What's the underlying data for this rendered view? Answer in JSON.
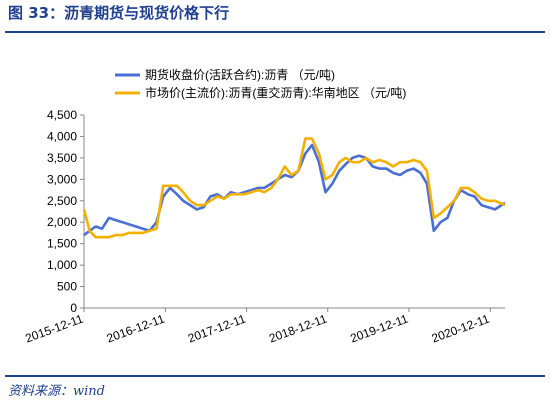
{
  "figure": {
    "title": "图 33：沥青期货与现货价格下行",
    "source": "资料来源：wind"
  },
  "chart_data": {
    "type": "line",
    "title": "",
    "xlabel": "",
    "ylabel": "",
    "ylim": [
      0,
      4500
    ],
    "yticks": [
      "0",
      "500",
      "1,000",
      "1,500",
      "2,000",
      "2,500",
      "3,000",
      "3,500",
      "4,000",
      "4,500"
    ],
    "ytick_values": [
      0,
      500,
      1000,
      1500,
      2000,
      2500,
      3000,
      3500,
      4000,
      4500
    ],
    "xlim": [
      "2015-12-11",
      "2021-02-15"
    ],
    "xticks": [
      "2015-12-11",
      "2016-12-11",
      "2017-12-11",
      "2018-12-11",
      "2019-12-11",
      "2020-12-11"
    ],
    "grid": false,
    "legend_position": "top",
    "series": [
      {
        "name": "期货收盘价(活跃合约):沥青 （元/吨)",
        "color": "#4a6fd3",
        "x": [
          "2015-12-11",
          "2016-01-05",
          "2016-02-01",
          "2016-03-01",
          "2016-04-01",
          "2016-05-01",
          "2016-06-01",
          "2016-07-01",
          "2016-08-01",
          "2016-09-01",
          "2016-10-01",
          "2016-11-01",
          "2016-12-01",
          "2017-01-01",
          "2017-02-01",
          "2017-03-01",
          "2017-04-01",
          "2017-05-01",
          "2017-06-01",
          "2017-07-01",
          "2017-08-01",
          "2017-09-01",
          "2017-10-01",
          "2017-11-01",
          "2017-12-01",
          "2018-01-01",
          "2018-02-01",
          "2018-03-01",
          "2018-04-01",
          "2018-05-01",
          "2018-06-01",
          "2018-07-01",
          "2018-08-01",
          "2018-09-01",
          "2018-10-01",
          "2018-11-01",
          "2018-12-01",
          "2019-01-01",
          "2019-02-01",
          "2019-03-01",
          "2019-04-01",
          "2019-05-01",
          "2019-06-01",
          "2019-07-01",
          "2019-08-01",
          "2019-09-01",
          "2019-10-01",
          "2019-11-01",
          "2019-12-01",
          "2020-01-01",
          "2020-02-01",
          "2020-03-01",
          "2020-04-01",
          "2020-05-01",
          "2020-06-01",
          "2020-07-01",
          "2020-08-01",
          "2020-09-01",
          "2020-10-01",
          "2020-11-01",
          "2020-12-01",
          "2021-01-01",
          "2021-02-15"
        ],
        "y": [
          1700,
          1800,
          1900,
          1850,
          2100,
          2050,
          2000,
          1950,
          1900,
          1850,
          1800,
          2000,
          2600,
          2800,
          2650,
          2500,
          2400,
          2300,
          2350,
          2600,
          2650,
          2550,
          2700,
          2650,
          2700,
          2750,
          2800,
          2800,
          2900,
          3000,
          3100,
          3050,
          3200,
          3600,
          3800,
          3400,
          2700,
          2900,
          3200,
          3350,
          3500,
          3550,
          3500,
          3300,
          3250,
          3250,
          3150,
          3100,
          3200,
          3250,
          3150,
          2900,
          1800,
          2000,
          2100,
          2500,
          2750,
          2650,
          2600,
          2400,
          2350,
          2300,
          2450
        ]
      },
      {
        "name": "市场价(主流价):沥青(重交沥青):华南地区 （元/吨)",
        "color": "#f2b000",
        "x": [
          "2015-12-11",
          "2016-01-05",
          "2016-02-01",
          "2016-03-01",
          "2016-04-01",
          "2016-05-01",
          "2016-06-01",
          "2016-07-01",
          "2016-08-01",
          "2016-09-01",
          "2016-10-01",
          "2016-11-01",
          "2016-12-01",
          "2017-01-01",
          "2017-02-01",
          "2017-03-01",
          "2017-04-01",
          "2017-05-01",
          "2017-06-01",
          "2017-07-01",
          "2017-08-01",
          "2017-09-01",
          "2017-10-01",
          "2017-11-01",
          "2017-12-01",
          "2018-01-01",
          "2018-02-01",
          "2018-03-01",
          "2018-04-01",
          "2018-05-01",
          "2018-06-01",
          "2018-07-01",
          "2018-08-01",
          "2018-09-01",
          "2018-10-01",
          "2018-11-01",
          "2018-12-01",
          "2019-01-01",
          "2019-02-01",
          "2019-03-01",
          "2019-04-01",
          "2019-05-01",
          "2019-06-01",
          "2019-07-01",
          "2019-08-01",
          "2019-09-01",
          "2019-10-01",
          "2019-11-01",
          "2019-12-01",
          "2020-01-01",
          "2020-02-01",
          "2020-03-01",
          "2020-04-01",
          "2020-05-01",
          "2020-06-01",
          "2020-07-01",
          "2020-08-01",
          "2020-09-01",
          "2020-10-01",
          "2020-11-01",
          "2020-12-01",
          "2021-01-01",
          "2021-02-15"
        ],
        "y": [
          2300,
          1800,
          1650,
          1650,
          1650,
          1700,
          1700,
          1750,
          1750,
          1750,
          1800,
          1850,
          2850,
          2850,
          2850,
          2700,
          2500,
          2400,
          2400,
          2500,
          2600,
          2550,
          2650,
          2650,
          2650,
          2700,
          2750,
          2700,
          2800,
          3000,
          3300,
          3100,
          3200,
          3950,
          3950,
          3600,
          3000,
          3100,
          3400,
          3500,
          3400,
          3400,
          3500,
          3400,
          3450,
          3400,
          3300,
          3400,
          3400,
          3450,
          3400,
          3200,
          2100,
          2200,
          2350,
          2500,
          2800,
          2800,
          2700,
          2550,
          2500,
          2500,
          2400
        ]
      }
    ]
  }
}
